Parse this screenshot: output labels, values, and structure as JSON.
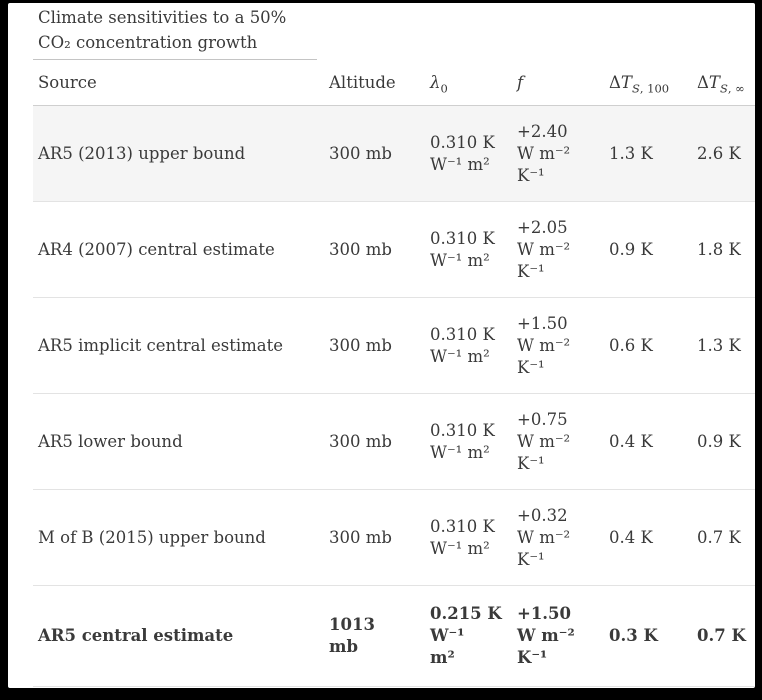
{
  "colors": {
    "frame": "#000000",
    "bg": "#ffffff",
    "text": "#3a3a3a",
    "row-highlight": "#f5f5f5",
    "rule-title": "#c4c4c4",
    "rule-header": "#cfcfcf",
    "rule-row": "#e3e3e3"
  },
  "title": {
    "lines": [
      "Climate sensitivities to a 50%",
      "CO₂ concentration growth"
    ]
  },
  "table": {
    "headers": [
      {
        "pre": "Source",
        "it": "",
        "sub_it": "",
        "sub_up": ""
      },
      {
        "pre": "Altitude",
        "it": "",
        "sub_it": "",
        "sub_up": ""
      },
      {
        "pre": "",
        "it": "λ",
        "sub_it": "",
        "sub_up": "0"
      },
      {
        "pre": "",
        "it": "f",
        "sub_it": "",
        "sub_up": ""
      },
      {
        "pre": "Δ",
        "it": "T",
        "sub_it": "S",
        "sub_up": ", 100"
      },
      {
        "pre": "Δ",
        "it": "T",
        "sub_it": "S",
        "sub_up": ", ∞"
      }
    ],
    "rows": [
      {
        "source": "AR5 (2013) upper bound",
        "altitude_lines": [
          "300 mb"
        ],
        "lambda0_lines": [
          "0.310 K",
          "W⁻¹ m²"
        ],
        "f_lines": [
          "+2.40",
          "W m⁻²",
          "K⁻¹"
        ],
        "dt100": "1.3 K",
        "dtinf": "2.6 K"
      },
      {
        "source": "AR4 (2007) central estimate",
        "altitude_lines": [
          "300 mb"
        ],
        "lambda0_lines": [
          "0.310 K",
          "W⁻¹ m²"
        ],
        "f_lines": [
          "+2.05",
          "W m⁻²",
          "K⁻¹"
        ],
        "dt100": "0.9 K",
        "dtinf": "1.8 K"
      },
      {
        "source": "AR5 implicit central estimate",
        "altitude_lines": [
          "300 mb"
        ],
        "lambda0_lines": [
          "0.310 K",
          "W⁻¹ m²"
        ],
        "f_lines": [
          "+1.50",
          "W m⁻²",
          "K⁻¹"
        ],
        "dt100": "0.6 K",
        "dtinf": "1.3 K"
      },
      {
        "source": "AR5 lower bound",
        "altitude_lines": [
          "300 mb"
        ],
        "lambda0_lines": [
          "0.310 K",
          "W⁻¹ m²"
        ],
        "f_lines": [
          "+0.75",
          "W m⁻²",
          "K⁻¹"
        ],
        "dt100": "0.4 K",
        "dtinf": "0.9 K"
      },
      {
        "source": "M of B (2015) upper bound",
        "altitude_lines": [
          "300 mb"
        ],
        "lambda0_lines": [
          "0.310 K",
          "W⁻¹ m²"
        ],
        "f_lines": [
          "+0.32",
          "W m⁻²",
          "K⁻¹"
        ],
        "dt100": "0.4 K",
        "dtinf": "0.7 K"
      },
      {
        "source": "AR5 central estimate",
        "altitude_lines": [
          "1013",
          "mb"
        ],
        "lambda0_lines": [
          "0.215 K",
          "W⁻¹",
          "m²"
        ],
        "f_lines": [
          "+1.50",
          "W m⁻²",
          "K⁻¹"
        ],
        "dt100": "0.3 K",
        "dtinf": "0.7 K"
      }
    ]
  }
}
